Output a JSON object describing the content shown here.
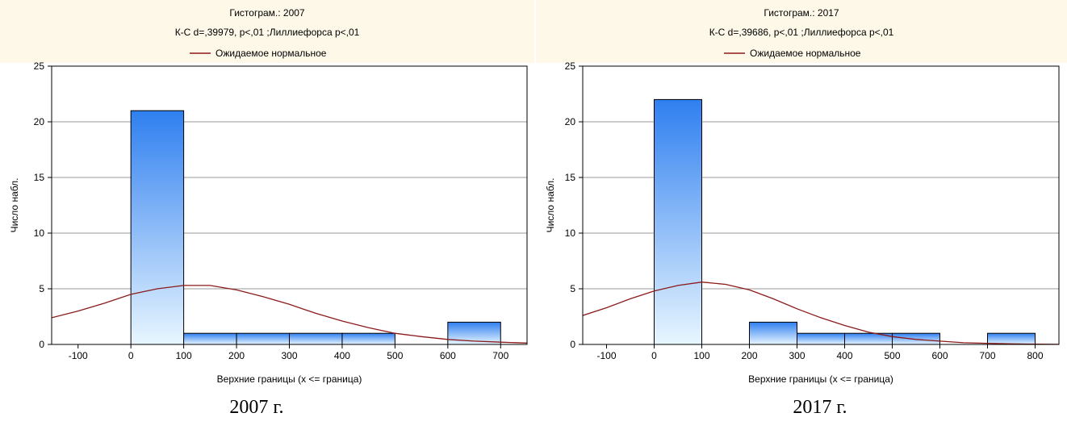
{
  "colors": {
    "header_bg": "#fdf8e8",
    "bar_top": "#2f7ff0",
    "bar_bottom": "#e8f6ff",
    "curve": "#8b1a1a",
    "grid": "#9a9a9a"
  },
  "chart_data": [
    {
      "type": "bar",
      "title": "Гистограм.: 2007",
      "subtitle": "К-С d=,39979, p<,01 ;Лиллиефорса p<,01",
      "legend": [
        {
          "name": "Ожидаемое нормальное",
          "type": "line"
        }
      ],
      "legend_placement": "top-center",
      "xlabel": "Верхние границы (x <= граница)",
      "ylabel": "Число набл.",
      "xlim": [
        -150,
        750
      ],
      "ylim": [
        0,
        25
      ],
      "xticks": [
        "-100",
        "0",
        "100",
        "200",
        "300",
        "400",
        "500",
        "600",
        "700"
      ],
      "yticks": [
        "0",
        "5",
        "10",
        "15",
        "20",
        "25"
      ],
      "grid": true,
      "bins": [
        {
          "from": 0,
          "to": 100,
          "count": 21
        },
        {
          "from": 100,
          "to": 200,
          "count": 1
        },
        {
          "from": 200,
          "to": 300,
          "count": 1
        },
        {
          "from": 300,
          "to": 400,
          "count": 1
        },
        {
          "from": 400,
          "to": 500,
          "count": 1
        },
        {
          "from": 500,
          "to": 600,
          "count": 0
        },
        {
          "from": 600,
          "to": 700,
          "count": 2
        }
      ],
      "expected_normal": [
        {
          "x": -150,
          "y": 2.4
        },
        {
          "x": -100,
          "y": 3.0
        },
        {
          "x": -50,
          "y": 3.7
        },
        {
          "x": 0,
          "y": 4.5
        },
        {
          "x": 50,
          "y": 5.0
        },
        {
          "x": 100,
          "y": 5.3
        },
        {
          "x": 150,
          "y": 5.3
        },
        {
          "x": 200,
          "y": 4.9
        },
        {
          "x": 250,
          "y": 4.3
        },
        {
          "x": 300,
          "y": 3.6
        },
        {
          "x": 350,
          "y": 2.8
        },
        {
          "x": 400,
          "y": 2.1
        },
        {
          "x": 450,
          "y": 1.5
        },
        {
          "x": 500,
          "y": 1.0
        },
        {
          "x": 550,
          "y": 0.7
        },
        {
          "x": 600,
          "y": 0.45
        },
        {
          "x": 650,
          "y": 0.3
        },
        {
          "x": 700,
          "y": 0.2
        },
        {
          "x": 750,
          "y": 0.12
        }
      ]
    },
    {
      "type": "bar",
      "title": "Гистограм.: 2017",
      "subtitle": "К-С d=,39686, p<,01 ;Лиллиефорса p<,01",
      "legend": [
        {
          "name": "Ожидаемое нормальное",
          "type": "line"
        }
      ],
      "legend_placement": "top-center",
      "xlabel": "Верхние границы (x <= граница)",
      "ylabel": "Число набл.",
      "xlim": [
        -150,
        850
      ],
      "ylim": [
        0,
        25
      ],
      "xticks": [
        "-100",
        "0",
        "100",
        "200",
        "300",
        "400",
        "500",
        "600",
        "700",
        "800"
      ],
      "yticks": [
        "0",
        "5",
        "10",
        "15",
        "20",
        "25"
      ],
      "grid": true,
      "bins": [
        {
          "from": 0,
          "to": 100,
          "count": 22
        },
        {
          "from": 100,
          "to": 200,
          "count": 0
        },
        {
          "from": 200,
          "to": 300,
          "count": 2
        },
        {
          "from": 300,
          "to": 400,
          "count": 1
        },
        {
          "from": 400,
          "to": 500,
          "count": 1
        },
        {
          "from": 500,
          "to": 600,
          "count": 1
        },
        {
          "from": 600,
          "to": 700,
          "count": 0
        },
        {
          "from": 700,
          "to": 800,
          "count": 1
        }
      ],
      "expected_normal": [
        {
          "x": -150,
          "y": 2.6
        },
        {
          "x": -100,
          "y": 3.3
        },
        {
          "x": -50,
          "y": 4.1
        },
        {
          "x": 0,
          "y": 4.8
        },
        {
          "x": 50,
          "y": 5.3
        },
        {
          "x": 100,
          "y": 5.6
        },
        {
          "x": 150,
          "y": 5.4
        },
        {
          "x": 200,
          "y": 4.9
        },
        {
          "x": 250,
          "y": 4.1
        },
        {
          "x": 300,
          "y": 3.2
        },
        {
          "x": 350,
          "y": 2.4
        },
        {
          "x": 400,
          "y": 1.7
        },
        {
          "x": 450,
          "y": 1.1
        },
        {
          "x": 500,
          "y": 0.7
        },
        {
          "x": 550,
          "y": 0.45
        },
        {
          "x": 600,
          "y": 0.3
        },
        {
          "x": 650,
          "y": 0.15
        },
        {
          "x": 700,
          "y": 0.1
        },
        {
          "x": 750,
          "y": 0.05
        },
        {
          "x": 800,
          "y": 0.02
        },
        {
          "x": 850,
          "y": 0.01
        }
      ]
    }
  ],
  "captions": [
    "2007 г.",
    "2017 г."
  ]
}
